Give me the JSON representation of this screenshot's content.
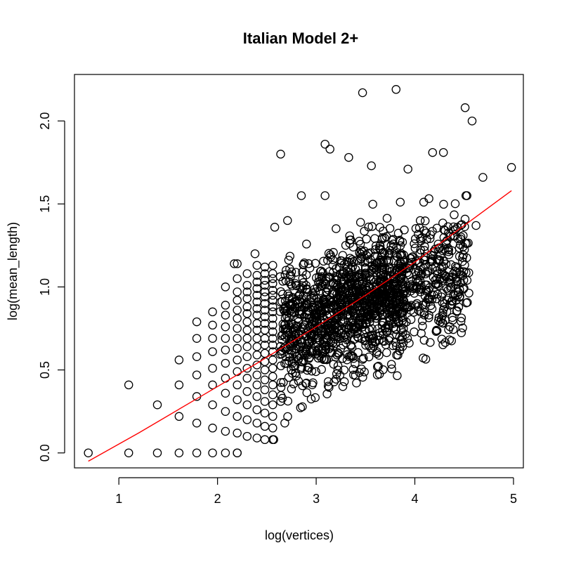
{
  "chart_data": {
    "type": "scatter",
    "title": "Italian Model 2+",
    "xlabel": "log(vertices)",
    "ylabel": "log(mean_length)",
    "xlim": [
      0.55,
      5.1
    ],
    "ylim": [
      -0.09,
      2.28
    ],
    "x_ticks": [
      "1",
      "2",
      "3",
      "4",
      "5"
    ],
    "y_ticks": [
      "0.0",
      "0.5",
      "1.0",
      "1.5",
      "2.0"
    ],
    "grid": false,
    "colors": {
      "points": "#000000",
      "fit_line": "#ff0000"
    },
    "notable_points": [
      {
        "x": 3.47,
        "y": 2.17
      },
      {
        "x": 3.81,
        "y": 2.19
      },
      {
        "x": 4.51,
        "y": 2.08
      },
      {
        "x": 4.58,
        "y": 2.0
      },
      {
        "x": 4.98,
        "y": 1.72
      },
      {
        "x": 2.64,
        "y": 1.8
      },
      {
        "x": 3.09,
        "y": 1.86
      },
      {
        "x": 3.14,
        "y": 1.83
      },
      {
        "x": 3.33,
        "y": 1.78
      },
      {
        "x": 3.56,
        "y": 1.73
      },
      {
        "x": 3.93,
        "y": 1.71
      },
      {
        "x": 4.18,
        "y": 1.81
      },
      {
        "x": 4.29,
        "y": 1.81
      },
      {
        "x": 4.69,
        "y": 1.66
      },
      {
        "x": 4.62,
        "y": 1.37
      },
      {
        "x": 4.49,
        "y": 1.31
      },
      {
        "x": 4.42,
        "y": 0.92
      },
      {
        "x": 4.53,
        "y": 1.04
      },
      {
        "x": 2.58,
        "y": 1.36
      },
      {
        "x": 2.38,
        "y": 1.2
      },
      {
        "x": 2.17,
        "y": 1.14
      },
      {
        "x": 2.71,
        "y": 1.4
      },
      {
        "x": 2.85,
        "y": 1.55
      },
      {
        "x": 3.09,
        "y": 1.55
      },
      {
        "x": 3.62,
        "y": 0.47
      },
      {
        "x": 3.27,
        "y": 0.4
      },
      {
        "x": 2.57,
        "y": 0.08
      },
      {
        "x": 2.2,
        "y": 0.0
      }
    ],
    "columns": [
      {
        "x": 0.69,
        "y": [
          0.0
        ]
      },
      {
        "x": 1.1,
        "y": [
          0.0,
          0.41
        ]
      },
      {
        "x": 1.39,
        "y": [
          0.0,
          0.29
        ]
      },
      {
        "x": 1.61,
        "y": [
          0.0,
          0.22,
          0.41,
          0.56
        ]
      },
      {
        "x": 1.79,
        "y": [
          0.0,
          0.18,
          0.34,
          0.47,
          0.58,
          0.69,
          0.79
        ]
      },
      {
        "x": 1.95,
        "y": [
          0.0,
          0.15,
          0.29,
          0.41,
          0.51,
          0.61,
          0.69,
          0.77,
          0.85
        ]
      },
      {
        "x": 2.08,
        "y": [
          0.0,
          0.13,
          0.25,
          0.36,
          0.45,
          0.54,
          0.62,
          0.69,
          0.76,
          0.83,
          0.89,
          1.0
        ]
      },
      {
        "x": 2.2,
        "y": [
          0.0,
          0.12,
          0.22,
          0.32,
          0.41,
          0.49,
          0.56,
          0.63,
          0.69,
          0.75,
          0.81,
          0.86,
          0.92,
          0.97,
          1.05,
          1.14
        ]
      },
      {
        "x": 2.3,
        "y": [
          0.1,
          0.2,
          0.29,
          0.37,
          0.45,
          0.51,
          0.58,
          0.64,
          0.69,
          0.74,
          0.79,
          0.84,
          0.88,
          0.93,
          0.97,
          1.01,
          1.08
        ]
      },
      {
        "x": 2.4,
        "y": [
          0.09,
          0.18,
          0.26,
          0.34,
          0.41,
          0.47,
          0.53,
          0.59,
          0.64,
          0.69,
          0.74,
          0.78,
          0.83,
          0.87,
          0.91,
          0.95,
          0.99,
          1.03,
          1.07,
          1.13
        ]
      },
      {
        "x": 2.48,
        "y": [
          0.08,
          0.16,
          0.24,
          0.31,
          0.38,
          0.44,
          0.5,
          0.55,
          0.6,
          0.65,
          0.69,
          0.74,
          0.78,
          0.82,
          0.86,
          0.9,
          0.94,
          0.97,
          1.01,
          1.04,
          1.08,
          1.12
        ]
      },
      {
        "x": 2.56,
        "y": [
          0.08,
          0.15,
          0.22,
          0.29,
          0.35,
          0.41,
          0.46,
          0.51,
          0.56,
          0.61,
          0.65,
          0.69,
          0.73,
          0.77,
          0.81,
          0.85,
          0.88,
          0.92,
          0.95,
          0.98,
          1.02,
          1.05,
          1.08,
          1.13
        ]
      }
    ],
    "cloud": {
      "x_range": [
        2.63,
        4.55
      ],
      "y_center_at_x3": 0.8
    },
    "fit_line": {
      "x": [
        0.69,
        1.2,
        1.8,
        2.4,
        3.0,
        3.5,
        4.0,
        4.5,
        4.98
      ],
      "y": [
        -0.05,
        0.12,
        0.33,
        0.54,
        0.76,
        0.95,
        1.15,
        1.37,
        1.58
      ]
    }
  }
}
